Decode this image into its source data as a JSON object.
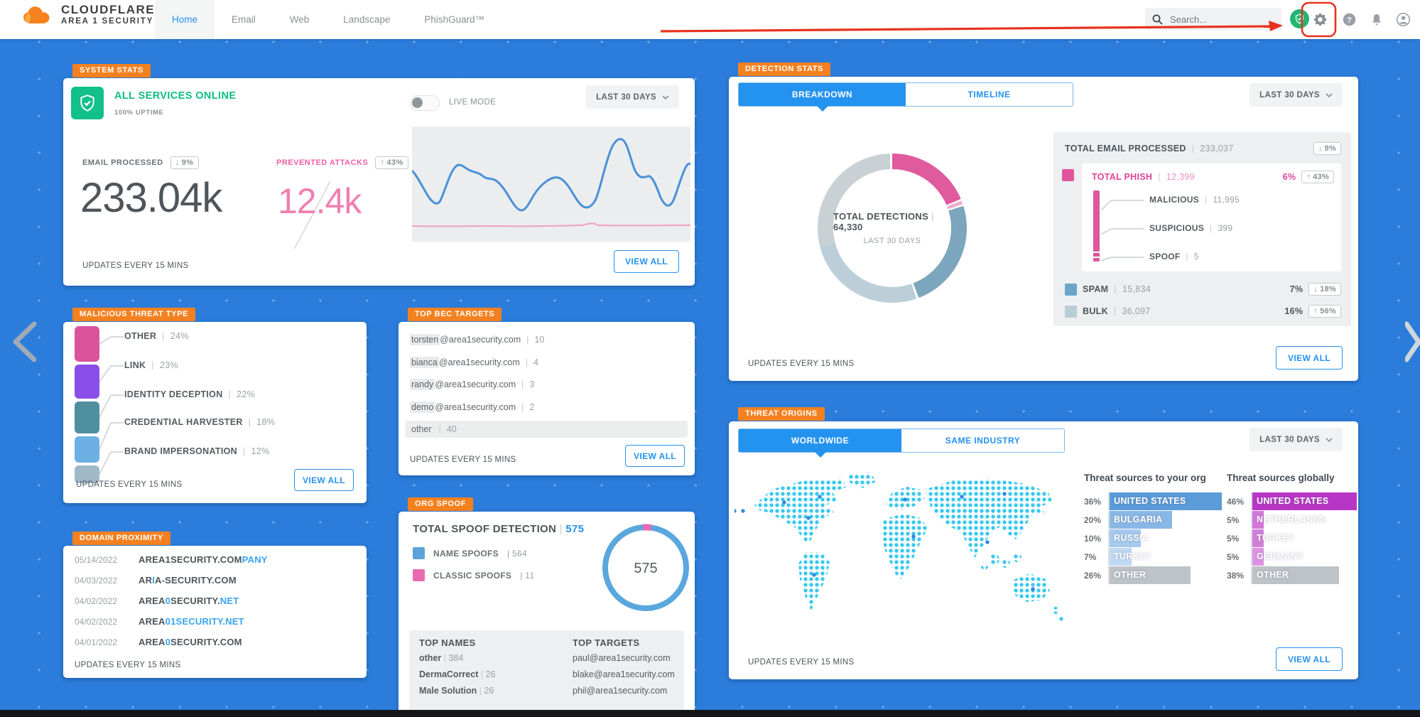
{
  "header": {
    "brand_line1": "CLOUDFLARE",
    "brand_line2": "AREA 1 SECURITY",
    "nav": [
      {
        "label": "Home",
        "active": true
      },
      {
        "label": "Email",
        "active": false
      },
      {
        "label": "Web",
        "active": false
      },
      {
        "label": "Landscape",
        "active": false
      },
      {
        "label": "PhishGuard™",
        "active": false
      }
    ],
    "search_placeholder": "Search...",
    "annotation_color": "#e8321e"
  },
  "system_stats": {
    "badge": "SYSTEM STATS",
    "status_title": "ALL SERVICES ONLINE",
    "status_subtitle": "100% UPTIME",
    "live_mode_label": "LIVE MODE",
    "range_label": "LAST 30 DAYS",
    "metrics": [
      {
        "label": "EMAIL PROCESSED",
        "delta_arrow": "↓",
        "delta": "9%",
        "value": "233.04k",
        "accent": "#4e555b"
      },
      {
        "label": "PREVENTED ATTACKS",
        "delta_arrow": "↑",
        "delta": "43%",
        "value": "12.4k",
        "accent": "#f07fb0",
        "label_color": "#ef5fa7"
      }
    ],
    "updates_label": "UPDATES EVERY 15 MINS",
    "view_all_label": "VIEW ALL"
  },
  "malicious_threat_type": {
    "badge": "MALICIOUS THREAT TYPE",
    "items": [
      {
        "label": "OTHER",
        "pct_label": "24%",
        "value": 24,
        "color": "#d9549b"
      },
      {
        "label": "LINK",
        "pct_label": "23%",
        "value": 23,
        "color": "#8a4fe8"
      },
      {
        "label": "IDENTITY DECEPTION",
        "pct_label": "22%",
        "value": 22,
        "color": "#4f8fa0"
      },
      {
        "label": "CREDENTIAL HARVESTER",
        "pct_label": "18%",
        "value": 18,
        "color": "#6db0e4"
      },
      {
        "label": "BRAND IMPERSONATION",
        "pct_label": "12%",
        "value": 12,
        "color": "#9fb9c9"
      }
    ],
    "updates_label": "UPDATES EVERY 15 MINS",
    "view_all_label": "VIEW ALL"
  },
  "domain_proximity": {
    "badge": "DOMAIN PROXIMITY",
    "rows": [
      {
        "date": "05/14/2022",
        "segments": [
          {
            "text": "AREA1SECURITY.COM",
            "hl": false
          },
          {
            "text": "PANY",
            "hl": true
          }
        ]
      },
      {
        "date": "04/03/2022",
        "segments": [
          {
            "text": "AR",
            "hl": false
          },
          {
            "text": "I",
            "hl": true
          },
          {
            "text": "A-SECURITY.COM",
            "hl": false
          }
        ]
      },
      {
        "date": "04/02/2022",
        "segments": [
          {
            "text": "AREA",
            "hl": false
          },
          {
            "text": "0",
            "hl": true
          },
          {
            "text": "SECURITY.",
            "hl": false
          },
          {
            "text": "NET",
            "hl": true
          }
        ]
      },
      {
        "date": "04/02/2022",
        "segments": [
          {
            "text": "AREA",
            "hl": false
          },
          {
            "text": "01SECURITY.NET",
            "hl": true
          }
        ]
      },
      {
        "date": "04/01/2022",
        "segments": [
          {
            "text": "AREA",
            "hl": false
          },
          {
            "text": "0",
            "hl": true
          },
          {
            "text": "SECURITY.COM",
            "hl": false
          }
        ]
      }
    ],
    "updates_label": "UPDATES EVERY 15 MINS"
  },
  "top_bec_targets": {
    "badge": "TOP BEC TARGETS",
    "rows": [
      {
        "name": "torsten",
        "rest": "@area1security.com",
        "count": "10",
        "full_highlight": false
      },
      {
        "name": "bianca",
        "rest": "@area1security.com",
        "count": "4",
        "full_highlight": false
      },
      {
        "name": "randy",
        "rest": "@area1security.com",
        "count": "3",
        "full_highlight": false
      },
      {
        "name": "demo",
        "rest": "@area1security.com",
        "count": "2",
        "full_highlight": false
      },
      {
        "name": "other",
        "rest": "",
        "count": "40",
        "full_highlight": true
      }
    ],
    "updates_label": "UPDATES EVERY 15 MINS",
    "view_all_label": "VIEW ALL"
  },
  "org_spoof": {
    "badge": "ORG SPOOF",
    "title": "TOTAL SPOOF DETECTION",
    "total": "575",
    "legend": [
      {
        "label": "NAME SPOOFS",
        "value": "564",
        "color": "#5ba3d9"
      },
      {
        "label": "CLASSIC SPOOFS",
        "value": "11",
        "color": "#e86bb1"
      }
    ],
    "donut_center": "575",
    "top_names_title": "TOP NAMES",
    "top_names": [
      {
        "name": "other",
        "count": "384"
      },
      {
        "name": "DermaCorrect",
        "count": "26"
      },
      {
        "name": "Male Solution",
        "count": "26"
      }
    ],
    "top_targets_title": "TOP TARGETS",
    "top_targets": [
      "paul@area1security.com",
      "blake@area1security.com",
      "phil@area1security.com"
    ]
  },
  "detection_stats": {
    "badge": "DETECTION STATS",
    "tabs": [
      {
        "label": "BREAKDOWN",
        "active": true
      },
      {
        "label": "TIMELINE",
        "active": false
      }
    ],
    "range_label": "LAST 30 DAYS",
    "donut": {
      "center_label": "TOTAL DETECTIONS",
      "center_value": "64,330",
      "center_sub": "LAST 30 DAYS"
    },
    "total_row": {
      "label": "TOTAL EMAIL PROCESSED",
      "value": "233,037",
      "delta_arrow": "↓",
      "delta": "9%"
    },
    "phish": {
      "label": "TOTAL PHISH",
      "value": "12,399",
      "pct": "6%",
      "delta_arrow": "↑",
      "delta": "43%",
      "color": "#e0569c",
      "sub": [
        {
          "label": "MALICIOUS",
          "value": "11,995"
        },
        {
          "label": "SUSPICIOUS",
          "value": "399"
        },
        {
          "label": "SPOOF",
          "value": "5"
        }
      ]
    },
    "rows": [
      {
        "label": "SPAM",
        "value": "15,834",
        "pct": "7%",
        "delta_arrow": "↓",
        "delta": "18%",
        "color": "#6aa5c8"
      },
      {
        "label": "BULK",
        "value": "36,097",
        "pct": "16%",
        "delta_arrow": "↑",
        "delta": "56%",
        "color": "#b9cdd6"
      }
    ],
    "updates_label": "UPDATES EVERY 15 MINS",
    "view_all_label": "VIEW ALL"
  },
  "threat_origins": {
    "badge": "THREAT ORIGINS",
    "tabs": [
      {
        "label": "WORLDWIDE",
        "active": true
      },
      {
        "label": "SAME INDUSTRY",
        "active": false
      }
    ],
    "range_label": "LAST 30 DAYS",
    "org_list": {
      "title": "Threat sources to your org",
      "rows": [
        {
          "pct": 36,
          "pct_label": "36%",
          "country": "UNITED STATES",
          "color": "#5b9bd9"
        },
        {
          "pct": 20,
          "pct_label": "20%",
          "country": "BULGARIA",
          "color": "#8ab8e6"
        },
        {
          "pct": 10,
          "pct_label": "10%",
          "country": "RUSSIA",
          "color": "#a6c9ee"
        },
        {
          "pct": 7,
          "pct_label": "7%",
          "country": "TURKEY",
          "color": "#bfd9f3"
        },
        {
          "pct": 26,
          "pct_label": "26%",
          "country": "OTHER",
          "color": "#bec3c7"
        }
      ]
    },
    "global_list": {
      "title": "Threat sources globally",
      "rows": [
        {
          "pct": 46,
          "pct_label": "46%",
          "country": "UNITED STATES",
          "color": "#b836c6"
        },
        {
          "pct": 5,
          "pct_label": "5%",
          "country": "NETHERLANDS",
          "color": "#d276d8"
        },
        {
          "pct": 5,
          "pct_label": "5%",
          "country": "TURKEY",
          "color": "#d07fd9"
        },
        {
          "pct": 5,
          "pct_label": "5%",
          "country": "GERMANY",
          "color": "#dc93e2"
        },
        {
          "pct": 38,
          "pct_label": "38%",
          "country": "OTHER",
          "color": "#bec3c7"
        }
      ]
    },
    "updates_label": "UPDATES EVERY 15 MINS",
    "view_all_label": "VIEW ALL"
  },
  "chart_data": [
    {
      "type": "line",
      "title": "System stats sparkline",
      "series": [
        {
          "name": "EMAIL PROCESSED",
          "color": "#4a90d9",
          "shape": "volatile wavy line, large peak near 78% of width"
        },
        {
          "name": "PREVENTED ATTACKS",
          "color": "#f0a0be",
          "shape": "nearly flat line near bottom, tiny bump at 62%"
        }
      ],
      "grid": false,
      "legend_position": "none"
    },
    {
      "type": "pie",
      "title": "Detection breakdown donut",
      "categories": [
        "TOTAL PHISH",
        "SPAM",
        "BULK"
      ],
      "values": [
        12399,
        15834,
        36097
      ],
      "total_label": "TOTAL DETECTIONS",
      "total": 64330,
      "sub_label": "LAST 30 DAYS",
      "colors": [
        "#e0569c",
        "#7ba6bd",
        "#c5ced2"
      ]
    },
    {
      "type": "pie",
      "title": "Org spoof donut",
      "categories": [
        "NAME SPOOFS",
        "CLASSIC SPOOFS"
      ],
      "values": [
        564,
        11
      ],
      "total": 575,
      "colors": [
        "#5ba3d9",
        "#e86bb1"
      ]
    },
    {
      "type": "bar",
      "title": "Malicious threat type (%)",
      "categories": [
        "OTHER",
        "LINK",
        "IDENTITY DECEPTION",
        "CREDENTIAL HARVESTER",
        "BRAND IMPERSONATION"
      ],
      "values": [
        24,
        23,
        22,
        18,
        12
      ]
    },
    {
      "type": "bar",
      "title": "Threat sources to your org (%)",
      "categories": [
        "UNITED STATES",
        "BULGARIA",
        "RUSSIA",
        "TURKEY",
        "OTHER"
      ],
      "values": [
        36,
        20,
        10,
        7,
        26
      ]
    },
    {
      "type": "bar",
      "title": "Threat sources globally (%)",
      "categories": [
        "UNITED STATES",
        "NETHERLANDS",
        "TURKEY",
        "GERMANY",
        "OTHER"
      ],
      "values": [
        46,
        5,
        5,
        5,
        38
      ]
    }
  ]
}
